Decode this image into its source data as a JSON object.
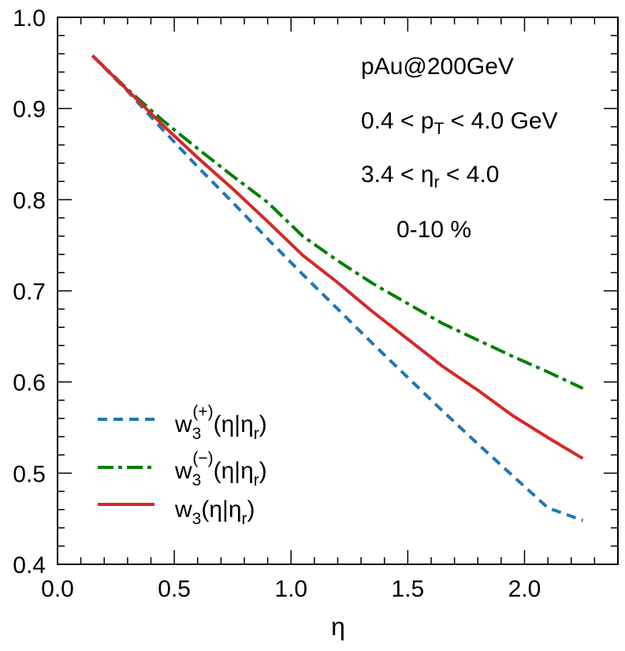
{
  "chart_data": {
    "type": "line",
    "xlabel": "η",
    "ylabel": "",
    "xlim": [
      0.0,
      2.4
    ],
    "ylim": [
      0.4,
      1.0
    ],
    "xticks": [
      "0.0",
      "0.5",
      "1.0",
      "1.5",
      "2.0"
    ],
    "yticks": [
      "0.4",
      "0.5",
      "0.6",
      "0.7",
      "0.8",
      "0.9",
      "1.0"
    ],
    "grid": false,
    "legend_position": "bottom-left",
    "annotations": {
      "system": "pAu@200GeV",
      "pt": {
        "pre": "0.4 < p",
        "sub": "T",
        "post": " < 4.0 GeV"
      },
      "eta": {
        "pre": "3.4 < η",
        "sub": "r",
        "post": " < 4.0"
      },
      "centrality": "0-10 %"
    },
    "series": [
      {
        "key": "plus",
        "legend": {
          "w": "w",
          "sub": "3",
          "sup": "(+)",
          "tail": "(η|η",
          "tailsub": "r",
          "close": ")"
        },
        "color": "#1f77b4",
        "dash": "dashed",
        "x": [
          0.15,
          0.3,
          0.45,
          0.6,
          0.75,
          0.9,
          1.05,
          1.2,
          1.35,
          1.5,
          1.65,
          1.8,
          1.95,
          2.1,
          2.25
        ],
        "y": [
          0.958,
          0.919,
          0.877,
          0.836,
          0.797,
          0.757,
          0.718,
          0.68,
          0.642,
          0.605,
          0.568,
          0.532,
          0.497,
          0.462,
          0.448
        ]
      },
      {
        "key": "minus",
        "legend": {
          "w": "w",
          "sub": "3",
          "sup": "(−)",
          "tail": "(η|η",
          "tailsub": "r",
          "close": ")"
        },
        "color": "#008000",
        "dash": "dashdot",
        "x": [
          0.15,
          0.3,
          0.45,
          0.6,
          0.75,
          0.9,
          1.05,
          1.2,
          1.35,
          1.5,
          1.65,
          1.8,
          1.95,
          2.1,
          2.25
        ],
        "y": [
          0.958,
          0.921,
          0.887,
          0.856,
          0.826,
          0.797,
          0.76,
          0.733,
          0.708,
          0.686,
          0.664,
          0.646,
          0.628,
          0.611,
          0.593
        ]
      },
      {
        "key": "total",
        "legend": {
          "w": "w",
          "sub": "3",
          "sup": "",
          "tail": "(η|η",
          "tailsub": "r",
          "close": ")"
        },
        "color": "#d62728",
        "dash": "solid",
        "x": [
          0.15,
          0.3,
          0.45,
          0.6,
          0.75,
          0.9,
          1.05,
          1.2,
          1.35,
          1.5,
          1.65,
          1.8,
          1.95,
          2.1,
          2.25
        ],
        "y": [
          0.958,
          0.92,
          0.882,
          0.846,
          0.812,
          0.776,
          0.739,
          0.709,
          0.677,
          0.647,
          0.617,
          0.591,
          0.563,
          0.539,
          0.516
        ]
      }
    ]
  }
}
